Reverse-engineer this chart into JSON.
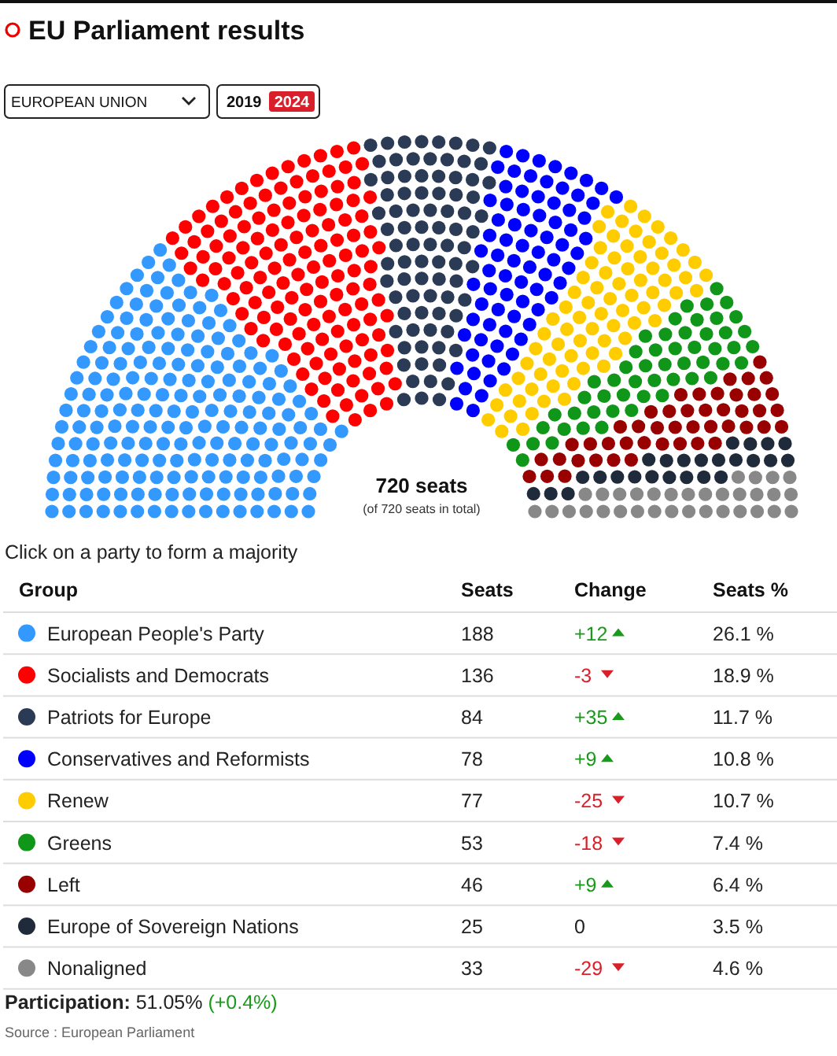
{
  "chart_data": {
    "type": "other",
    "title": "EU Parliament results",
    "subtitle": "Click on a party to form a majority",
    "legend_title": "Group",
    "categories": [
      "European People's Party",
      "Socialists and Democrats",
      "Patriots for Europe",
      "Conservatives and Reformists",
      "Renew",
      "Greens",
      "Left",
      "Europe of Sovereign Nations",
      "Nonaligned"
    ],
    "colors": [
      "#3399ff",
      "#ff0000",
      "#2b3a55",
      "#0000ff",
      "#ffcc00",
      "#109618",
      "#990000",
      "#1f2a3a",
      "#888888"
    ],
    "data_labels": true,
    "series": [
      {
        "name": "Seats",
        "values": [
          188,
          136,
          84,
          78,
          77,
          53,
          46,
          25,
          33
        ]
      },
      {
        "name": "Change",
        "values": [
          12,
          -3,
          35,
          9,
          -25,
          -18,
          9,
          0,
          -29
        ],
        "value_labels": [
          "+12",
          "-3",
          "+35",
          "+9",
          "-25",
          "-18",
          "+9",
          "0",
          "-29"
        ]
      },
      {
        "name": "Seats %",
        "values": [
          26.1,
          18.9,
          11.7,
          10.8,
          10.7,
          7.4,
          6.4,
          3.5,
          4.6
        ],
        "value_labels": [
          "26.1 %",
          "18.9 %",
          "11.7 %",
          "10.8 %",
          "10.7 %",
          "7.4 %",
          "6.4 %",
          "3.5 %",
          "4.6 %"
        ]
      }
    ],
    "annotations": [
      "EUROPEAN UNION",
      "2019",
      "2024",
      "720 seats",
      "(of 720 seats in total)",
      "Participation: 51.05% (+0.4%)",
      "Source : European Parliament"
    ]
  }
}
